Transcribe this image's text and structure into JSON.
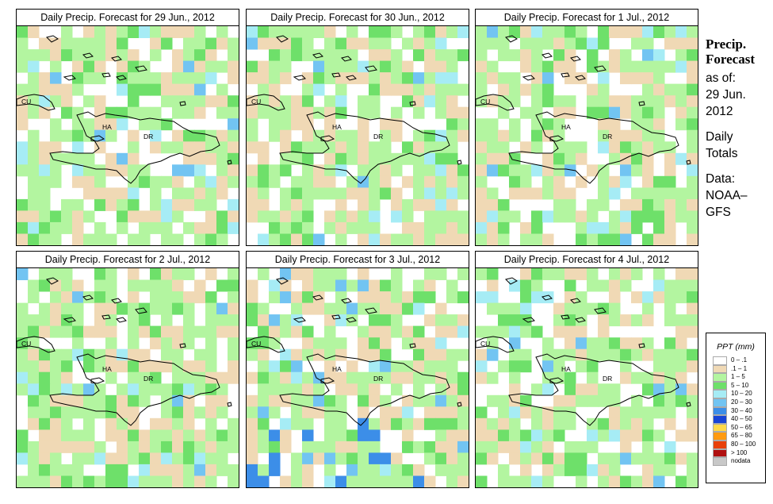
{
  "panels": [
    {
      "title": "Daily Precip. Forecast for  29 Jun., 2012",
      "seed": 11,
      "wet": 0.45
    },
    {
      "title": "Daily Precip. Forecast for  30 Jun., 2012",
      "seed": 23,
      "wet": 0.5
    },
    {
      "title": "Daily Precip. Forecast for  1 Jul., 2012",
      "seed": 37,
      "wet": 0.3
    },
    {
      "title": "Daily Precip. Forecast for  2 Jul., 2012",
      "seed": 41,
      "wet": 0.5
    },
    {
      "title": "Daily Precip. Forecast for  3 Jul., 2012",
      "seed": 53,
      "wet": 0.75
    },
    {
      "title": "Daily Precip. Forecast for  4 Jul., 2012",
      "seed": 67,
      "wet": 0.55
    }
  ],
  "map_labels": {
    "cuba": "CU",
    "haiti": "HA",
    "dr": "DR"
  },
  "sidebar": {
    "heading_1": "Precip.",
    "heading_2": "Forecast",
    "as_of_label": "as of:",
    "date_1": "29 Jun.",
    "date_2": "2012",
    "totals_1": "Daily",
    "totals_2": "Totals",
    "data_1": "Data:",
    "data_2": "NOAA–",
    "data_3": "GFS"
  },
  "legend": {
    "title": "PPT (mm)",
    "items": [
      {
        "label": "0 – .1",
        "color": "#ffffff"
      },
      {
        "label": ".1 – 1",
        "color": "#f0d9b5"
      },
      {
        "label": "1 – 5",
        "color": "#b3f5a0"
      },
      {
        "label": "5 – 10",
        "color": "#6ee06a"
      },
      {
        "label": "10 – 20",
        "color": "#a6ecf5"
      },
      {
        "label": "20 – 30",
        "color": "#72c4f2"
      },
      {
        "label": "30 – 40",
        "color": "#3c8ee8"
      },
      {
        "label": "40 – 50",
        "color": "#1844d6"
      },
      {
        "label": "50 – 65",
        "color": "#ffd94a"
      },
      {
        "label": "65 – 80",
        "color": "#ff9a10"
      },
      {
        "label": "80 – 100",
        "color": "#e8400a"
      },
      {
        "label": "> 100",
        "color": "#b01010"
      },
      {
        "label": "nodata",
        "color": "#c8c8c8"
      }
    ]
  }
}
